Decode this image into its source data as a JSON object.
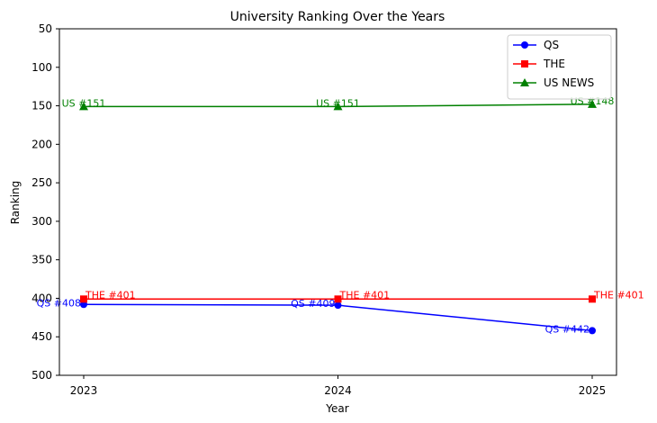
{
  "chart_data": {
    "type": "line",
    "title": "University Ranking Over the Years",
    "xlabel": "Year",
    "ylabel": "Ranking",
    "x": [
      "2023",
      "2024",
      "2025"
    ],
    "ylim": [
      50,
      500
    ],
    "y_inverted": true,
    "yticks": [
      "50",
      "100",
      "150",
      "200",
      "250",
      "300",
      "350",
      "400",
      "450",
      "500"
    ],
    "grid": false,
    "legend_position": "top-right",
    "series": [
      {
        "name": "QS",
        "color": "#0000ff",
        "marker": "circle",
        "values": [
          408,
          409,
          442
        ],
        "labels": [
          "QS #408",
          "QS #409",
          "QS #442"
        ]
      },
      {
        "name": "THE",
        "color": "#ff0000",
        "marker": "square",
        "values": [
          401,
          401,
          401
        ],
        "labels": [
          "THE #401",
          "THE #401",
          "THE #401"
        ]
      },
      {
        "name": "US NEWS",
        "color": "#008000",
        "marker": "triangle",
        "values": [
          151,
          151,
          148
        ],
        "labels": [
          "US #151",
          "US #151",
          "US #148"
        ]
      }
    ]
  }
}
